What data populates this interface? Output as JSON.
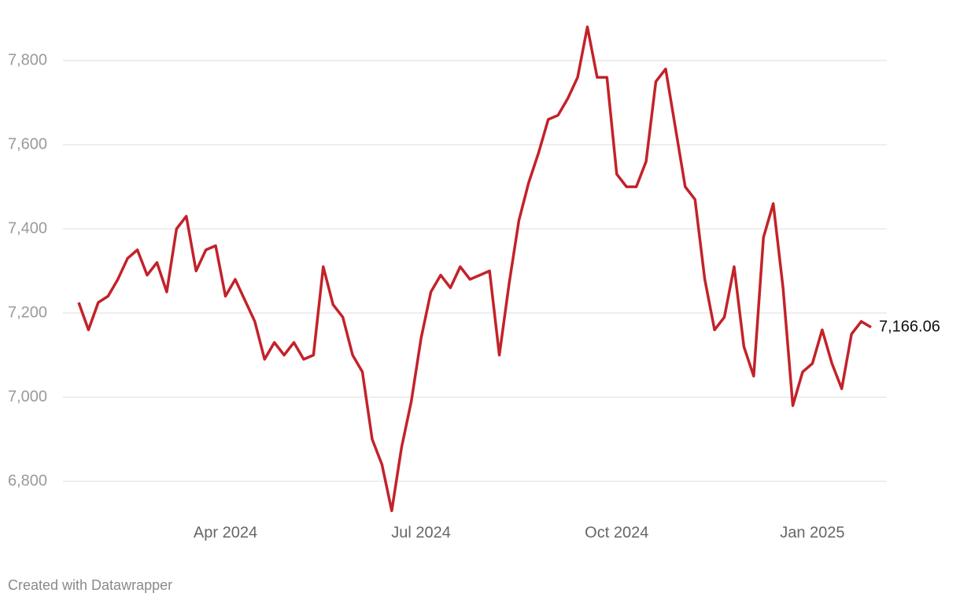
{
  "chart_data": {
    "type": "line",
    "categories": [
      null,
      null,
      null,
      null,
      null,
      null,
      null,
      null,
      null,
      null,
      null,
      null,
      null,
      null,
      null,
      "Apr 2024",
      null,
      null,
      null,
      null,
      null,
      null,
      null,
      null,
      null,
      null,
      null,
      null,
      null,
      null,
      null,
      null,
      null,
      null,
      null,
      "Jul 2024",
      null,
      null,
      null,
      null,
      null,
      null,
      null,
      null,
      null,
      null,
      null,
      null,
      null,
      null,
      null,
      null,
      null,
      null,
      null,
      "Oct 2024",
      null,
      null,
      null,
      null,
      null,
      null,
      null,
      null,
      null,
      null,
      null,
      null,
      null,
      null,
      null,
      null,
      null,
      null,
      null,
      "Jan 2025",
      null,
      null,
      null,
      null,
      null,
      null
    ],
    "series": [
      {
        "color": "#c3222a",
        "values": [
          7225,
          7160,
          7225,
          7240,
          7280,
          7330,
          7350,
          7290,
          7320,
          7250,
          7400,
          7430,
          7300,
          7350,
          7360,
          7240,
          7280,
          7230,
          7180,
          7090,
          7130,
          7100,
          7130,
          7090,
          7100,
          7310,
          7220,
          7190,
          7100,
          7060,
          6900,
          6840,
          6730,
          6880,
          6990,
          7140,
          7250,
          7290,
          7260,
          7310,
          7280,
          7290,
          7300,
          7100,
          7270,
          7420,
          7510,
          7580,
          7660,
          7670,
          7710,
          7760,
          7880,
          7760,
          7760,
          7530,
          7500,
          7500,
          7560,
          7750,
          7780,
          7640,
          7500,
          7470,
          7280,
          7160,
          7190,
          7310,
          7120,
          7050,
          7380,
          7460,
          7260,
          6980,
          7060,
          7080,
          7160,
          7080,
          7020,
          7150,
          7180,
          7166.06
        ],
        "value_labels": [
          null,
          null,
          null,
          null,
          null,
          null,
          null,
          null,
          null,
          null,
          null,
          null,
          null,
          null,
          null,
          null,
          null,
          null,
          null,
          null,
          null,
          null,
          null,
          null,
          null,
          null,
          null,
          null,
          null,
          null,
          null,
          null,
          null,
          null,
          null,
          null,
          null,
          null,
          null,
          null,
          null,
          null,
          null,
          null,
          null,
          null,
          null,
          null,
          null,
          null,
          null,
          null,
          null,
          null,
          null,
          null,
          null,
          null,
          null,
          null,
          null,
          null,
          null,
          null,
          null,
          null,
          null,
          null,
          null,
          null,
          null,
          null,
          null,
          null,
          null,
          null,
          null,
          null,
          null,
          null,
          null,
          "7,166.06"
        ]
      }
    ],
    "ylim": [
      6700,
      7900
    ],
    "yticks": [
      {
        "value": 6800,
        "label": "6,800"
      },
      {
        "value": 7000,
        "label": "7,000"
      },
      {
        "value": 7200,
        "label": "7,200"
      },
      {
        "value": 7400,
        "label": "7,400"
      },
      {
        "value": 7600,
        "label": "7,600"
      },
      {
        "value": 7800,
        "label": "7,800"
      }
    ],
    "grid": true,
    "source": "Created with Datawrapper"
  }
}
